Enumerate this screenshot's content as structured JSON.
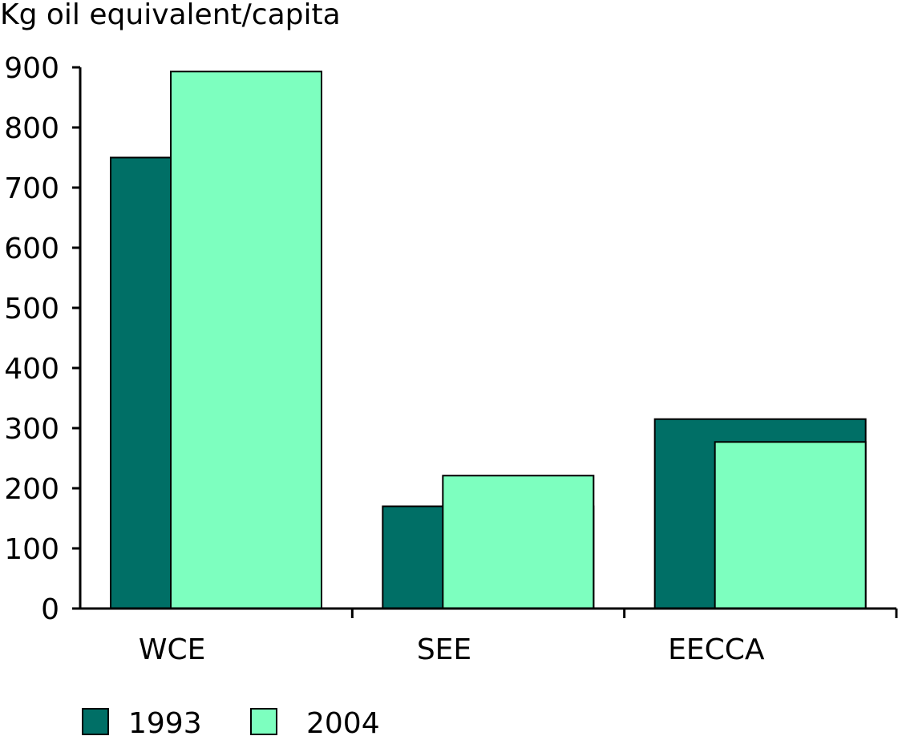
{
  "chart_data": {
    "type": "bar",
    "title": "",
    "ylabel": "Kg oil equivalent/capita",
    "xlabel": "",
    "categories": [
      "WCE",
      "SEE",
      "EECCA"
    ],
    "series": [
      {
        "name": "1993",
        "values": [
          750,
          170,
          315
        ],
        "color": "#006F66"
      },
      {
        "name": "2004",
        "values": [
          893,
          221,
          277
        ],
        "color": "#7DFFBF"
      }
    ],
    "ylim": [
      0,
      900
    ],
    "yticks": [
      "0",
      "100",
      "200",
      "300",
      "400",
      "500",
      "600",
      "700",
      "800",
      "900"
    ],
    "grid": false,
    "legend_position": "bottom-left",
    "bar_stroke_color": "#000000"
  }
}
